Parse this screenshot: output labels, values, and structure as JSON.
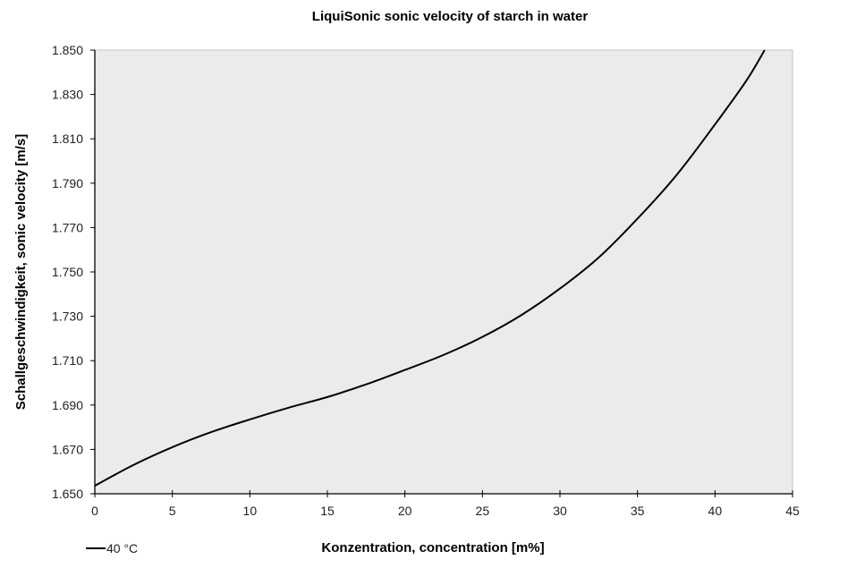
{
  "chart_data": {
    "type": "line",
    "title": "LiquiSonic sonic velocity of starch in water",
    "xlabel": "Konzentration, concentration [m%]",
    "ylabel": "Schallgeschwindigkeit, sonic velocity [m/s]",
    "xlim": [
      0,
      45
    ],
    "ylim": [
      1650,
      1850
    ],
    "x_ticks": [
      "0",
      "5",
      "10",
      "15",
      "20",
      "25",
      "30",
      "35",
      "40",
      "45"
    ],
    "y_ticks": [
      "1.650",
      "1.670",
      "1.690",
      "1.710",
      "1.730",
      "1.750",
      "1.770",
      "1.790",
      "1.810",
      "1.830",
      "1.850"
    ],
    "grid": false,
    "plot_background": "#ebebeb",
    "legend_position": "bottom-left",
    "series": [
      {
        "name": "40 °C",
        "color": "#000000",
        "x": [
          0,
          2.5,
          5,
          7.5,
          10,
          12.5,
          15,
          17.5,
          20,
          22.5,
          25,
          27.5,
          30,
          32.5,
          35,
          37.5,
          40,
          42,
          43.2
        ],
        "y": [
          1653.6,
          1663,
          1671,
          1677.8,
          1683.5,
          1688.8,
          1693.6,
          1699.3,
          1705.8,
          1712.6,
          1720.7,
          1730.5,
          1742.5,
          1756.5,
          1774,
          1793.5,
          1816.5,
          1836,
          1850
        ]
      }
    ]
  }
}
